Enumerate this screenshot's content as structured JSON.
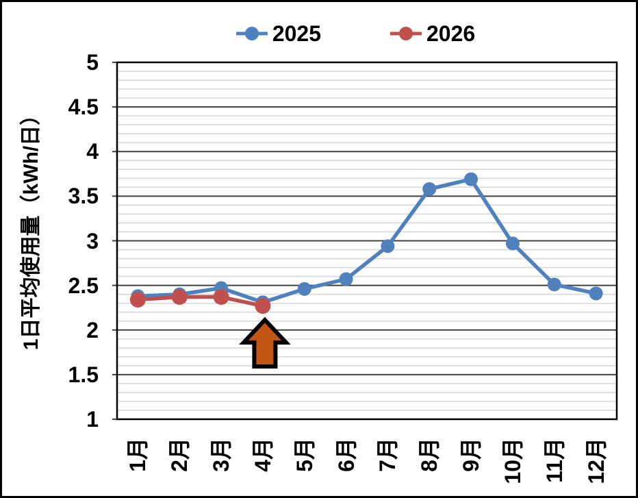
{
  "window": {
    "background": "#FFFFFF",
    "border_color": "#000000"
  },
  "legend": {
    "items": [
      {
        "label": "2025",
        "color": "#4F81BD"
      },
      {
        "label": "2026",
        "color": "#C0504D"
      }
    ]
  },
  "chart_data": {
    "type": "line",
    "title": "",
    "xlabel": "",
    "ylabel": "1日平均使用量（kWh/日）",
    "categories": [
      "1月",
      "2月",
      "3月",
      "4月",
      "5月",
      "6月",
      "7月",
      "8月",
      "9月",
      "10月",
      "11月",
      "12月"
    ],
    "series": [
      {
        "name": "2025",
        "color": "#4F81BD",
        "values": [
          2.38,
          2.4,
          2.47,
          2.31,
          2.46,
          2.57,
          2.94,
          3.58,
          3.69,
          2.97,
          2.51,
          2.41
        ]
      },
      {
        "name": "2026",
        "color": "#C0504D",
        "values": [
          2.34,
          2.37,
          2.37,
          2.27,
          null,
          null,
          null,
          null,
          null,
          null,
          null,
          null
        ]
      }
    ],
    "ylim": [
      1,
      5
    ],
    "y_major_step": 0.5,
    "y_minor_step": 0.1,
    "y_tick_labels": [
      "5",
      "4.5",
      "4",
      "3.5",
      "3",
      "2.5",
      "2",
      "1.5",
      "1"
    ],
    "grid": true,
    "legend_position": "top",
    "colors": {
      "major_grid": "#404040",
      "minor_grid": "#D8D8D8",
      "plot_border": "#000000"
    },
    "annotation": {
      "shape": "block-arrow-up",
      "category": "4月",
      "category_index": 3,
      "fill": "#C25715",
      "outline": "#000000"
    }
  }
}
